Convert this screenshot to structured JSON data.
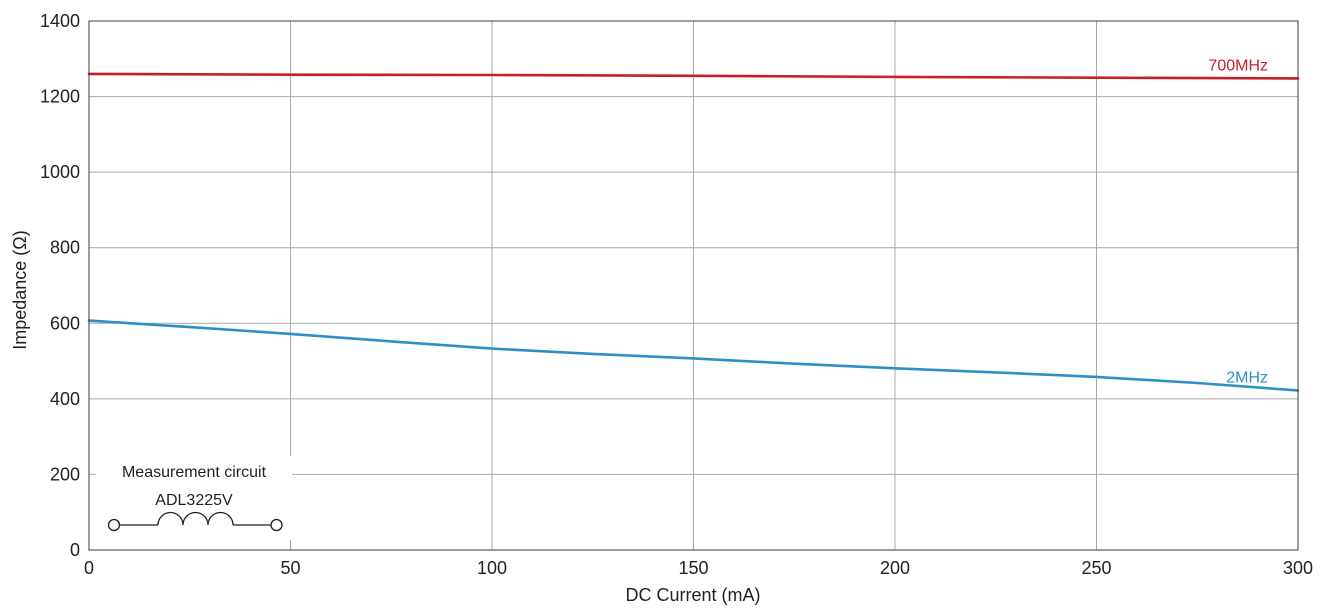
{
  "chart_data": {
    "type": "line",
    "xlabel": "DC Current (mA)",
    "ylabel": "Impedance (Ω)",
    "xlim": [
      0,
      300
    ],
    "ylim": [
      0,
      1400
    ],
    "x_ticks": [
      "0",
      "50",
      "100",
      "150",
      "200",
      "250",
      "300"
    ],
    "y_ticks": [
      "0",
      "200",
      "400",
      "600",
      "800",
      "1000",
      "1200",
      "1400"
    ],
    "grid": true,
    "series": [
      {
        "name": "700MHz",
        "color": "#c8202b",
        "x": [
          0,
          50,
          100,
          150,
          200,
          250,
          300
        ],
        "values": [
          1260,
          1258,
          1257,
          1255,
          1252,
          1250,
          1248
        ]
      },
      {
        "name": "2MHz",
        "color": "#2f8fc5",
        "x": [
          0,
          25,
          50,
          75,
          100,
          125,
          150,
          175,
          200,
          225,
          250,
          275,
          300
        ],
        "values": [
          607,
          590,
          572,
          552,
          533,
          519,
          507,
          493,
          481,
          470,
          458,
          442,
          422
        ]
      }
    ],
    "annotation": {
      "title": "Measurement circuit",
      "part": "ADL3225V"
    }
  }
}
